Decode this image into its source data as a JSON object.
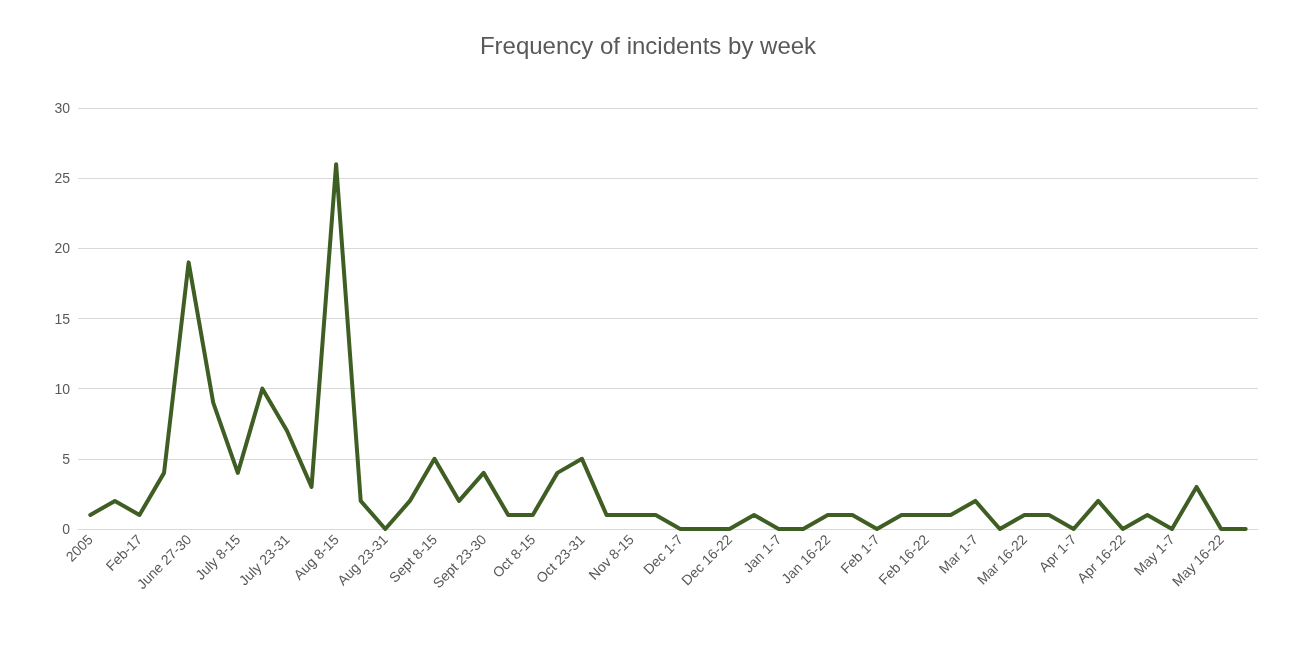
{
  "chart_data": {
    "type": "line",
    "title": "Frequency of incidents by week",
    "categories": [
      "2005",
      null,
      "Feb-17",
      null,
      "June 27-30",
      null,
      "July 8-15",
      null,
      "July 23-31",
      null,
      "Aug 8-15",
      null,
      "Aug 23-31",
      null,
      "Sept 8-15",
      null,
      "Sept 23-30",
      null,
      "Oct 8-15",
      null,
      "Oct 23-31",
      null,
      "Nov 8-15",
      null,
      "Dec 1-7",
      null,
      "Dec 16-22",
      null,
      "Jan 1-7",
      null,
      "Jan 16-22",
      null,
      "Feb 1-7",
      null,
      "Feb 16-22",
      null,
      "Mar 1-7",
      null,
      "Mar 16-22",
      null,
      "Apr 1-7",
      null,
      "Apr 16-22",
      null,
      "May 1-7",
      null,
      "May 16-22",
      null
    ],
    "series": [
      {
        "color": "#3f5e23",
        "values": [
          1,
          2,
          1,
          4,
          19,
          9,
          4,
          10,
          7,
          3,
          26,
          2,
          0,
          2,
          5,
          2,
          4,
          1,
          1,
          4,
          5,
          1,
          1,
          1,
          0,
          0,
          0,
          1,
          0,
          0,
          1,
          1,
          0,
          1,
          1,
          1,
          2,
          0,
          1,
          1,
          0,
          2,
          0,
          1,
          0,
          3,
          0,
          0
        ]
      }
    ],
    "ylim": [
      0,
      30
    ],
    "yticks": [
      0,
      5,
      10,
      15,
      20,
      25,
      30
    ],
    "grid": "y",
    "marker": "none",
    "line_style": "solid"
  }
}
